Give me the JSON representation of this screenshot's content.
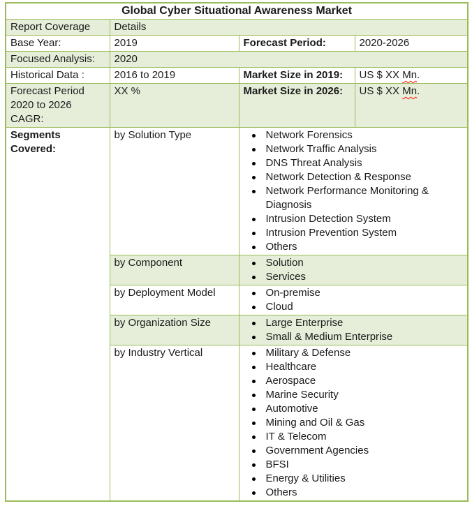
{
  "title": "Global Cyber Situational Awareness Market",
  "colors": {
    "border": "#9BBB59",
    "shade": "#E6EED9",
    "text": "#1a1a1a",
    "squiggle": "#ff1405"
  },
  "header": {
    "label": "Report Coverage",
    "value": "Details"
  },
  "rows": {
    "base_year": {
      "label": "Base Year:",
      "value": "2019",
      "label2": "Forecast Period:",
      "value2": "2020-2026"
    },
    "focused": {
      "label": "Focused Analysis:",
      "value": "2020"
    },
    "historical": {
      "label": "Historical Data :",
      "value": "2016 to 2019",
      "label2": "Market Size in 2019:",
      "value2": {
        "text": "US $ XX ",
        "misspelled": "Mn",
        "suffix": "."
      }
    },
    "forecast_cagr": {
      "label": "Forecast Period 2020 to 2026 CAGR:",
      "value": "XX %",
      "label2": "Market Size in 2026:",
      "value2": {
        "text": "US $ XX ",
        "misspelled": "Mn",
        "suffix": "."
      }
    }
  },
  "segments": {
    "label": "Segments Covered:",
    "groups": [
      {
        "name": "by Solution Type",
        "shaded": false,
        "items": [
          "Network Forensics",
          "Network Traffic Analysis",
          "DNS Threat Analysis",
          "Network Detection & Response",
          "Network Performance Monitoring & Diagnosis",
          "Intrusion Detection System",
          "Intrusion Prevention System",
          "Others"
        ]
      },
      {
        "name": "by Component",
        "shaded": true,
        "items": [
          "Solution",
          "Services"
        ]
      },
      {
        "name": "by Deployment Model",
        "shaded": false,
        "items": [
          "On-premise",
          "Cloud"
        ]
      },
      {
        "name": "by Organization Size",
        "shaded": true,
        "items": [
          "Large Enterprise",
          "Small & Medium Enterprise"
        ]
      },
      {
        "name": "by Industry Vertical",
        "shaded": false,
        "items": [
          "Military & Defense",
          "Healthcare",
          "Aerospace",
          "Marine Security",
          "Automotive",
          "Mining and Oil & Gas",
          "IT & Telecom",
          "Government Agencies",
          "BFSI",
          "Energy & Utilities",
          "Others"
        ]
      }
    ]
  }
}
